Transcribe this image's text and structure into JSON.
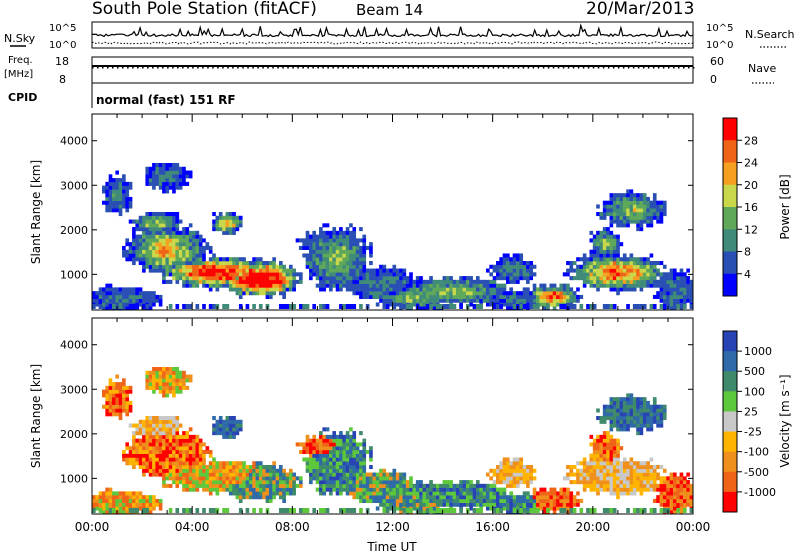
{
  "header": {
    "station": "South Pole Station (fitACF)",
    "beam": "Beam 14",
    "date": "20/Mar/2013"
  },
  "summary_panels": {
    "nsky_label": "N.Sky",
    "nsky_ticks": [
      "10^5",
      "10^0"
    ],
    "nsearch_label": "N.Search",
    "nsearch_ticks": [
      "10^5",
      "10^0"
    ],
    "freq_label": "Freq.",
    "freq_unit": "[MHz]",
    "freq_ticks": [
      "18",
      "8"
    ],
    "nave_label": "Nave",
    "nave_ticks": [
      "60",
      "0"
    ],
    "cpid_label": "CPID",
    "cpid_text": "normal (fast) 151 RF"
  },
  "colors": {
    "power_scale": [
      "#0000ff",
      "#2a4fb4",
      "#3f8a78",
      "#5fa85a",
      "#c8d84a",
      "#f5a020",
      "#f06418",
      "#ff0000"
    ],
    "velocity_scale": [
      "#2844b4",
      "#2e6aa8",
      "#3f8a6a",
      "#5ec83c",
      "#c8c8c8",
      "#ffb400",
      "#f0901c",
      "#f06418",
      "#ff0000"
    ]
  },
  "chart_data": [
    {
      "type": "heatmap",
      "name": "power",
      "ylabel": "Slant Range [km]",
      "x_ticks": [
        "00:00",
        "04:00",
        "08:00",
        "12:00",
        "16:00",
        "20:00",
        "00:00"
      ],
      "y_ticks": [
        1000,
        2000,
        3000,
        4000
      ],
      "ylim": [
        200,
        4600
      ],
      "colorbar_label": "Power [dB]",
      "colorbar_ticks": [
        "4",
        "8",
        "12",
        "16",
        "20",
        "24",
        "28"
      ],
      "crange": [
        0,
        32
      ]
    },
    {
      "type": "heatmap",
      "name": "velocity",
      "xlabel": "Time UT",
      "ylabel": "Slant Range [km]",
      "x_ticks": [
        "00:00",
        "04:00",
        "08:00",
        "12:00",
        "16:00",
        "20:00",
        "00:00"
      ],
      "y_ticks": [
        1000,
        2000,
        3000,
        4000
      ],
      "ylim": [
        200,
        4600
      ],
      "colorbar_label": "Velocity [m s⁻¹]",
      "colorbar_ticks": [
        "1000",
        "500",
        "100",
        "25",
        "-25",
        "-100",
        "-500",
        "-1000"
      ]
    }
  ]
}
